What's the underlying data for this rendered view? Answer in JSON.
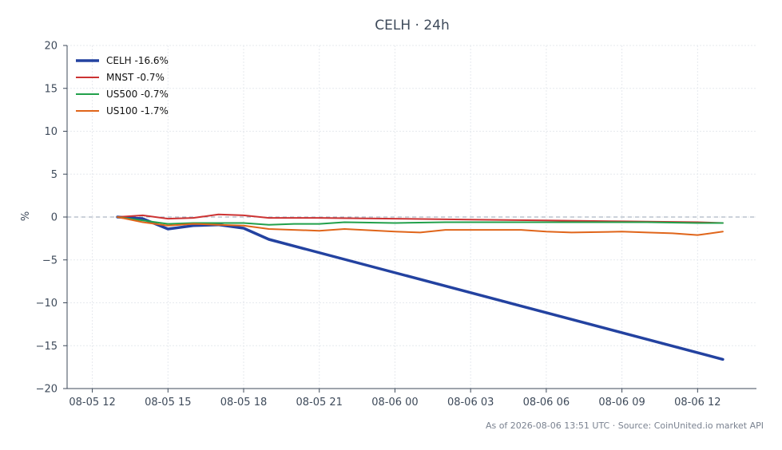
{
  "chart_data": {
    "type": "line",
    "title": "CELH · 24h",
    "xlabel": "",
    "ylabel": "%",
    "xlim": [
      "2026-08-05 11:00",
      "2026-08-06 14:20"
    ],
    "ylim": [
      -20,
      20
    ],
    "x_ticks": [
      "08-05 12",
      "08-05 15",
      "08-05 18",
      "08-05 21",
      "08-06 00",
      "08-06 03",
      "08-06 06",
      "08-06 09",
      "08-06 12"
    ],
    "y_ticks": [
      "20",
      "15",
      "10",
      "5",
      "0",
      "−5",
      "−10",
      "−15",
      "−20"
    ],
    "y_tick_values": [
      20,
      15,
      10,
      5,
      0,
      -5,
      -10,
      -15,
      -20
    ],
    "grid": true,
    "zero_line": true,
    "legend_position": "top-left",
    "footer": "As of 2026-08-06 13:51 UTC · Source: CoinUnited.io market API",
    "series": [
      {
        "name": "CELH -16.6%",
        "color": "#2342a0",
        "x": [
          "2026-08-05 13:00",
          "2026-08-05 14:00",
          "2026-08-05 15:00",
          "2026-08-05 16:00",
          "2026-08-05 17:00",
          "2026-08-05 18:00",
          "2026-08-05 19:00",
          "2026-08-06 13:00"
        ],
        "values": [
          0.0,
          -0.2,
          -1.4,
          -1.0,
          -0.9,
          -1.3,
          -2.6,
          -16.6
        ]
      },
      {
        "name": "MNST -0.7%",
        "color": "#cc3333",
        "x": [
          "2026-08-05 13:00",
          "2026-08-05 14:00",
          "2026-08-05 15:00",
          "2026-08-05 16:00",
          "2026-08-05 17:00",
          "2026-08-05 18:00",
          "2026-08-05 19:00",
          "2026-08-05 21:00",
          "2026-08-06 00:00",
          "2026-08-06 03:00",
          "2026-08-06 06:00",
          "2026-08-06 09:00",
          "2026-08-06 12:00",
          "2026-08-06 13:00"
        ],
        "values": [
          0.0,
          0.2,
          -0.2,
          -0.1,
          0.3,
          0.2,
          -0.1,
          -0.1,
          -0.2,
          -0.3,
          -0.4,
          -0.5,
          -0.6,
          -0.7
        ]
      },
      {
        "name": "US500 -0.7%",
        "color": "#22a04b",
        "x": [
          "2026-08-05 13:00",
          "2026-08-05 14:00",
          "2026-08-05 15:00",
          "2026-08-05 16:00",
          "2026-08-05 17:00",
          "2026-08-05 18:00",
          "2026-08-05 19:00",
          "2026-08-05 20:00",
          "2026-08-05 21:00",
          "2026-08-05 22:00",
          "2026-08-06 00:00",
          "2026-08-06 02:00",
          "2026-08-06 04:00",
          "2026-08-06 06:00",
          "2026-08-06 08:00",
          "2026-08-06 10:00",
          "2026-08-06 12:00",
          "2026-08-06 13:00"
        ],
        "values": [
          0.0,
          -0.4,
          -0.8,
          -0.7,
          -0.7,
          -0.7,
          -0.9,
          -0.8,
          -0.8,
          -0.6,
          -0.7,
          -0.6,
          -0.6,
          -0.6,
          -0.6,
          -0.6,
          -0.7,
          -0.7
        ]
      },
      {
        "name": "US100 -1.7%",
        "color": "#e0651a",
        "x": [
          "2026-08-05 13:00",
          "2026-08-05 14:00",
          "2026-08-05 15:00",
          "2026-08-05 16:00",
          "2026-08-05 17:00",
          "2026-08-05 18:00",
          "2026-08-05 19:00",
          "2026-08-05 21:00",
          "2026-08-05 22:00",
          "2026-08-06 00:00",
          "2026-08-06 01:00",
          "2026-08-06 02:00",
          "2026-08-06 03:00",
          "2026-08-06 05:00",
          "2026-08-06 06:00",
          "2026-08-06 07:00",
          "2026-08-06 09:00",
          "2026-08-06 10:00",
          "2026-08-06 11:00",
          "2026-08-06 12:00",
          "2026-08-06 13:00"
        ],
        "values": [
          0.0,
          -0.6,
          -1.0,
          -0.8,
          -0.9,
          -1.0,
          -1.4,
          -1.6,
          -1.4,
          -1.7,
          -1.8,
          -1.5,
          -1.5,
          -1.5,
          -1.7,
          -1.8,
          -1.7,
          -1.8,
          -1.9,
          -2.1,
          -1.7
        ]
      }
    ]
  }
}
